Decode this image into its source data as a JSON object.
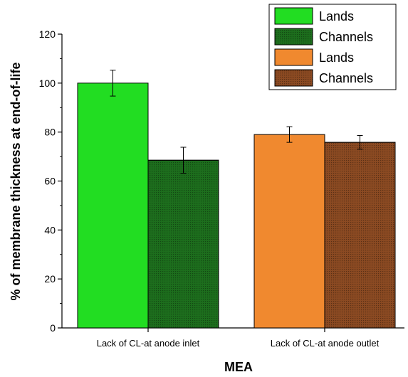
{
  "chart_data": {
    "type": "bar",
    "categories": [
      "Lack of CL-at anode inlet",
      "Lack of CL-at anode outlet"
    ],
    "xlabel": "MEA",
    "ylabel": "% of membrane thickness at end-of-life",
    "ylim": [
      0,
      120
    ],
    "yticks": [
      0,
      20,
      40,
      60,
      80,
      100,
      120
    ],
    "grid": false,
    "legend_position": "top-right",
    "bars": [
      {
        "category": "Lack of CL-at anode inlet",
        "legend": "Lands",
        "value": 100,
        "error": 5.3,
        "color": "#22dd22",
        "pattern": false
      },
      {
        "category": "Lack of CL-at anode inlet",
        "legend": "Channels",
        "value": 68.5,
        "error": 5.3,
        "color": "#1d6e1d",
        "pattern": true
      },
      {
        "category": "Lack of CL-at anode outlet",
        "legend": "Lands",
        "value": 79,
        "error": 3.2,
        "color": "#f0892f",
        "pattern": false
      },
      {
        "category": "Lack of CL-at anode outlet",
        "legend": "Channels",
        "value": 75.8,
        "error": 2.8,
        "color": "#8b4a22",
        "pattern": true
      }
    ],
    "legend": [
      {
        "label": "Lands",
        "color": "#22dd22",
        "pattern": false
      },
      {
        "label": "Channels",
        "color": "#1d6e1d",
        "pattern": true
      },
      {
        "label": "Lands",
        "color": "#f0892f",
        "pattern": false
      },
      {
        "label": "Channels",
        "color": "#8b4a22",
        "pattern": true
      }
    ]
  }
}
